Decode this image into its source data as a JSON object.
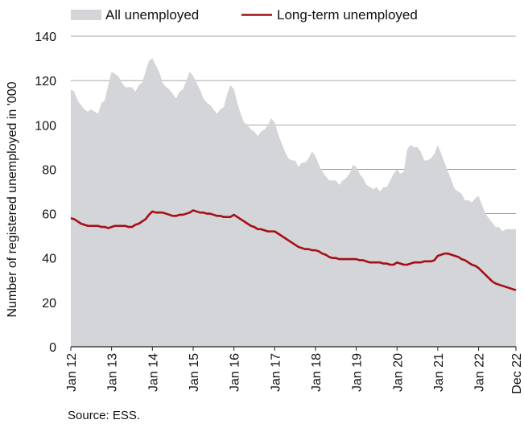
{
  "chart_data": {
    "type": "area",
    "ylabel": "Number of registered unemployed in '000",
    "ylim": [
      0,
      140
    ],
    "yticks": [
      0,
      20,
      40,
      60,
      80,
      100,
      120,
      140
    ],
    "xlim": [
      "2012-01",
      "2022-12"
    ],
    "xticks": [
      {
        "date": "2012-01",
        "label": "Jan 12"
      },
      {
        "date": "2013-01",
        "label": "Jan 13"
      },
      {
        "date": "2014-01",
        "label": "Jan 14"
      },
      {
        "date": "2015-01",
        "label": "Jan 15"
      },
      {
        "date": "2016-01",
        "label": "Jan 16"
      },
      {
        "date": "2017-01",
        "label": "Jan 17"
      },
      {
        "date": "2018-01",
        "label": "Jan 18"
      },
      {
        "date": "2019-01",
        "label": "Jan 19"
      },
      {
        "date": "2020-01",
        "label": "Jan 20"
      },
      {
        "date": "2021-01",
        "label": "Jan 21"
      },
      {
        "date": "2022-01",
        "label": "Jan 22"
      },
      {
        "date": "2022-12",
        "label": "Dec 22"
      }
    ],
    "grid": true,
    "legend_position": "top",
    "series": [
      {
        "name": "All unemployed",
        "type": "area",
        "color": "#d4d5d8",
        "points": [
          [
            "2012-01",
            116
          ],
          [
            "2012-02",
            115
          ],
          [
            "2012-03",
            111
          ],
          [
            "2012-04",
            109
          ],
          [
            "2012-05",
            107
          ],
          [
            "2012-06",
            106
          ],
          [
            "2012-07",
            107
          ],
          [
            "2012-08",
            106
          ],
          [
            "2012-09",
            105
          ],
          [
            "2012-10",
            110
          ],
          [
            "2012-11",
            111
          ],
          [
            "2012-12",
            118
          ],
          [
            "2013-01",
            124
          ],
          [
            "2013-02",
            123
          ],
          [
            "2013-03",
            122
          ],
          [
            "2013-04",
            119
          ],
          [
            "2013-05",
            117
          ],
          [
            "2013-06",
            117
          ],
          [
            "2013-07",
            117
          ],
          [
            "2013-08",
            115
          ],
          [
            "2013-09",
            118
          ],
          [
            "2013-10",
            119
          ],
          [
            "2013-11",
            124
          ],
          [
            "2013-12",
            129
          ],
          [
            "2014-01",
            130
          ],
          [
            "2014-02",
            127
          ],
          [
            "2014-03",
            124
          ],
          [
            "2014-04",
            119
          ],
          [
            "2014-05",
            117
          ],
          [
            "2014-06",
            116
          ],
          [
            "2014-07",
            114
          ],
          [
            "2014-08",
            112
          ],
          [
            "2014-09",
            115
          ],
          [
            "2014-10",
            116
          ],
          [
            "2014-11",
            120
          ],
          [
            "2014-12",
            124
          ],
          [
            "2015-01",
            122
          ],
          [
            "2015-02",
            119
          ],
          [
            "2015-03",
            116
          ],
          [
            "2015-04",
            112
          ],
          [
            "2015-05",
            110
          ],
          [
            "2015-06",
            109
          ],
          [
            "2015-07",
            107
          ],
          [
            "2015-08",
            105
          ],
          [
            "2015-09",
            107
          ],
          [
            "2015-10",
            108
          ],
          [
            "2015-11",
            114
          ],
          [
            "2015-12",
            118
          ],
          [
            "2016-01",
            116
          ],
          [
            "2016-02",
            110
          ],
          [
            "2016-03",
            105
          ],
          [
            "2016-04",
            101
          ],
          [
            "2016-05",
            100
          ],
          [
            "2016-06",
            98
          ],
          [
            "2016-07",
            97
          ],
          [
            "2016-08",
            95
          ],
          [
            "2016-09",
            97
          ],
          [
            "2016-10",
            98
          ],
          [
            "2016-11",
            100
          ],
          [
            "2016-12",
            103
          ],
          [
            "2017-01",
            101
          ],
          [
            "2017-02",
            96
          ],
          [
            "2017-03",
            92
          ],
          [
            "2017-04",
            88
          ],
          [
            "2017-05",
            85
          ],
          [
            "2017-06",
            84
          ],
          [
            "2017-07",
            84
          ],
          [
            "2017-08",
            81
          ],
          [
            "2017-09",
            83
          ],
          [
            "2017-10",
            83
          ],
          [
            "2017-11",
            85
          ],
          [
            "2017-12",
            88
          ],
          [
            "2018-01",
            86
          ],
          [
            "2018-02",
            82
          ],
          [
            "2018-03",
            79
          ],
          [
            "2018-04",
            77
          ],
          [
            "2018-05",
            75
          ],
          [
            "2018-06",
            75
          ],
          [
            "2018-07",
            75
          ],
          [
            "2018-08",
            73
          ],
          [
            "2018-09",
            75
          ],
          [
            "2018-10",
            76
          ],
          [
            "2018-11",
            78
          ],
          [
            "2018-12",
            82
          ],
          [
            "2019-01",
            81
          ],
          [
            "2019-02",
            78
          ],
          [
            "2019-03",
            76
          ],
          [
            "2019-04",
            73
          ],
          [
            "2019-05",
            72
          ],
          [
            "2019-06",
            71
          ],
          [
            "2019-07",
            72
          ],
          [
            "2019-08",
            70
          ],
          [
            "2019-09",
            72
          ],
          [
            "2019-10",
            72
          ],
          [
            "2019-11",
            75
          ],
          [
            "2019-12",
            78
          ],
          [
            "2020-01",
            80
          ],
          [
            "2020-02",
            78
          ],
          [
            "2020-03",
            79
          ],
          [
            "2020-04",
            89
          ],
          [
            "2020-05",
            91
          ],
          [
            "2020-06",
            90
          ],
          [
            "2020-07",
            90
          ],
          [
            "2020-08",
            88
          ],
          [
            "2020-09",
            84
          ],
          [
            "2020-10",
            84
          ],
          [
            "2020-11",
            85
          ],
          [
            "2020-12",
            87
          ],
          [
            "2021-01",
            91
          ],
          [
            "2021-02",
            87
          ],
          [
            "2021-03",
            83
          ],
          [
            "2021-04",
            79
          ],
          [
            "2021-05",
            75
          ],
          [
            "2021-06",
            71
          ],
          [
            "2021-07",
            70
          ],
          [
            "2021-08",
            69
          ],
          [
            "2021-09",
            66
          ],
          [
            "2021-10",
            66
          ],
          [
            "2021-11",
            65
          ],
          [
            "2021-12",
            67
          ],
          [
            "2022-01",
            68
          ],
          [
            "2022-02",
            64
          ],
          [
            "2022-03",
            60
          ],
          [
            "2022-04",
            58
          ],
          [
            "2022-05",
            56
          ],
          [
            "2022-06",
            54
          ],
          [
            "2022-07",
            54
          ],
          [
            "2022-08",
            52
          ],
          [
            "2022-09",
            53
          ],
          [
            "2022-10",
            53
          ],
          [
            "2022-11",
            53
          ],
          [
            "2022-12",
            53
          ]
        ]
      },
      {
        "name": "Long-term unemployed",
        "type": "line",
        "color": "#a50f15",
        "points": [
          [
            "2012-01",
            58
          ],
          [
            "2012-02",
            57.5
          ],
          [
            "2012-03",
            56.5
          ],
          [
            "2012-04",
            55.5
          ],
          [
            "2012-05",
            55
          ],
          [
            "2012-06",
            54.5
          ],
          [
            "2012-07",
            54.5
          ],
          [
            "2012-08",
            54.5
          ],
          [
            "2012-09",
            54.5
          ],
          [
            "2012-10",
            54
          ],
          [
            "2012-11",
            54
          ],
          [
            "2012-12",
            53.5
          ],
          [
            "2013-01",
            54
          ],
          [
            "2013-02",
            54.5
          ],
          [
            "2013-03",
            54.5
          ],
          [
            "2013-04",
            54.5
          ],
          [
            "2013-05",
            54.5
          ],
          [
            "2013-06",
            54
          ],
          [
            "2013-07",
            54
          ],
          [
            "2013-08",
            55
          ],
          [
            "2013-09",
            55.5
          ],
          [
            "2013-10",
            56.5
          ],
          [
            "2013-11",
            57.5
          ],
          [
            "2013-12",
            59.5
          ],
          [
            "2014-01",
            61
          ],
          [
            "2014-02",
            60.5
          ],
          [
            "2014-03",
            60.5
          ],
          [
            "2014-04",
            60.5
          ],
          [
            "2014-05",
            60
          ],
          [
            "2014-06",
            59.5
          ],
          [
            "2014-07",
            59
          ],
          [
            "2014-08",
            59
          ],
          [
            "2014-09",
            59.5
          ],
          [
            "2014-10",
            59.5
          ],
          [
            "2014-11",
            60
          ],
          [
            "2014-12",
            60.5
          ],
          [
            "2015-01",
            61.5
          ],
          [
            "2015-02",
            61
          ],
          [
            "2015-03",
            60.5
          ],
          [
            "2015-04",
            60.5
          ],
          [
            "2015-05",
            60
          ],
          [
            "2015-06",
            60
          ],
          [
            "2015-07",
            59.5
          ],
          [
            "2015-08",
            59
          ],
          [
            "2015-09",
            59
          ],
          [
            "2015-10",
            58.5
          ],
          [
            "2015-11",
            58.5
          ],
          [
            "2015-12",
            58.5
          ],
          [
            "2016-01",
            59.5
          ],
          [
            "2016-02",
            58.5
          ],
          [
            "2016-03",
            57.5
          ],
          [
            "2016-04",
            56.5
          ],
          [
            "2016-05",
            55.5
          ],
          [
            "2016-06",
            54.5
          ],
          [
            "2016-07",
            54
          ],
          [
            "2016-08",
            53
          ],
          [
            "2016-09",
            53
          ],
          [
            "2016-10",
            52.5
          ],
          [
            "2016-11",
            52
          ],
          [
            "2016-12",
            52
          ],
          [
            "2017-01",
            52
          ],
          [
            "2017-02",
            51
          ],
          [
            "2017-03",
            50
          ],
          [
            "2017-04",
            49
          ],
          [
            "2017-05",
            48
          ],
          [
            "2017-06",
            47
          ],
          [
            "2017-07",
            46
          ],
          [
            "2017-08",
            45
          ],
          [
            "2017-09",
            44.5
          ],
          [
            "2017-10",
            44
          ],
          [
            "2017-11",
            44
          ],
          [
            "2017-12",
            43.5
          ],
          [
            "2018-01",
            43.5
          ],
          [
            "2018-02",
            43
          ],
          [
            "2018-03",
            42
          ],
          [
            "2018-04",
            41.5
          ],
          [
            "2018-05",
            40.5
          ],
          [
            "2018-06",
            40
          ],
          [
            "2018-07",
            40
          ],
          [
            "2018-08",
            39.5
          ],
          [
            "2018-09",
            39.5
          ],
          [
            "2018-10",
            39.5
          ],
          [
            "2018-11",
            39.5
          ],
          [
            "2018-12",
            39.5
          ],
          [
            "2019-01",
            39.5
          ],
          [
            "2019-02",
            39
          ],
          [
            "2019-03",
            39
          ],
          [
            "2019-04",
            38.5
          ],
          [
            "2019-05",
            38
          ],
          [
            "2019-06",
            38
          ],
          [
            "2019-07",
            38
          ],
          [
            "2019-08",
            38
          ],
          [
            "2019-09",
            37.5
          ],
          [
            "2019-10",
            37.5
          ],
          [
            "2019-11",
            37
          ],
          [
            "2019-12",
            37
          ],
          [
            "2020-01",
            38
          ],
          [
            "2020-02",
            37.5
          ],
          [
            "2020-03",
            37
          ],
          [
            "2020-04",
            37
          ],
          [
            "2020-05",
            37.5
          ],
          [
            "2020-06",
            38
          ],
          [
            "2020-07",
            38
          ],
          [
            "2020-08",
            38
          ],
          [
            "2020-09",
            38.5
          ],
          [
            "2020-10",
            38.5
          ],
          [
            "2020-11",
            38.5
          ],
          [
            "2020-12",
            39
          ],
          [
            "2021-01",
            41
          ],
          [
            "2021-02",
            41.5
          ],
          [
            "2021-03",
            42
          ],
          [
            "2021-04",
            42
          ],
          [
            "2021-05",
            41.5
          ],
          [
            "2021-06",
            41
          ],
          [
            "2021-07",
            40.5
          ],
          [
            "2021-08",
            39.5
          ],
          [
            "2021-09",
            39
          ],
          [
            "2021-10",
            38
          ],
          [
            "2021-11",
            37
          ],
          [
            "2021-12",
            36.5
          ],
          [
            "2022-01",
            35.5
          ],
          [
            "2022-02",
            34
          ],
          [
            "2022-03",
            32.5
          ],
          [
            "2022-04",
            31
          ],
          [
            "2022-05",
            29.5
          ],
          [
            "2022-06",
            28.5
          ],
          [
            "2022-07",
            28
          ],
          [
            "2022-08",
            27.5
          ],
          [
            "2022-09",
            27
          ],
          [
            "2022-10",
            26.5
          ],
          [
            "2022-11",
            26
          ],
          [
            "2022-12",
            25.5
          ]
        ]
      }
    ]
  },
  "source": "Source: ESS."
}
